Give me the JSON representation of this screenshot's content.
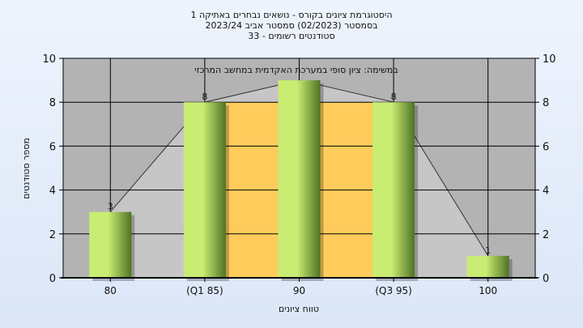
{
  "chart_data": {
    "type": "bar",
    "title_lines": [
      "היסטוגרמת ציונים בקורס - נושאים נבחרים באתיקה 1",
      "בסמסטר  (02/2023)  סמסטר אביב 2023/24",
      "סטודנטים רשומים - 33"
    ],
    "annotation": "במשימה: ציון סופי במערכת האקדמית במחשב המרכזי",
    "categories": [
      "80",
      "(Q1 85)",
      "90",
      "(Q3 95)",
      "100"
    ],
    "values": [
      3,
      8,
      9,
      8,
      1
    ],
    "data_labels": [
      "3",
      "8",
      "",
      "8",
      "1"
    ],
    "xlabel": "טווח ציונים",
    "ylabel": "מספר סטודנטים",
    "ylim": [
      0,
      10
    ],
    "yticks": [
      0,
      2,
      4,
      6,
      8,
      10
    ],
    "grid": true,
    "interquartile_band": {
      "from_category": "(Q1 85)",
      "to_category": "(Q3 95)",
      "color": "#ffcc5c"
    },
    "colors": {
      "plot_background": "#b3b3b3",
      "bar_light": "#c9ec72",
      "bar_dark": "#4f7324",
      "distribution_area": "#c6c6c6"
    }
  }
}
